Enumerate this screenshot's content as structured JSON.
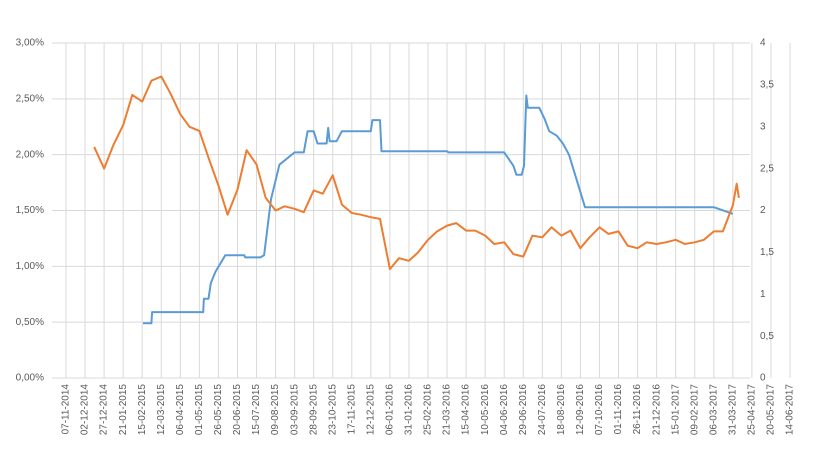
{
  "chart_data": {
    "type": "line",
    "xticks": [
      "07-11-2014",
      "02-12-2014",
      "27-12-2014",
      "21-01-2015",
      "15-02-2015",
      "12-03-2015",
      "06-04-2015",
      "01-05-2015",
      "26-05-2015",
      "20-06-2015",
      "15-07-2015",
      "09-08-2015",
      "03-09-2015",
      "28-09-2015",
      "23-10-2015",
      "17-11-2015",
      "12-12-2015",
      "06-01-2016",
      "31-01-2016",
      "25-02-2016",
      "21-03-2016",
      "15-04-2016",
      "10-05-2016",
      "04-06-2016",
      "29-06-2016",
      "24-07-2016",
      "18-08-2016",
      "12-09-2016",
      "07-10-2016",
      "01-11-2016",
      "26-11-2016",
      "21-12-2016",
      "15-01-2017",
      "09-02-2017",
      "06-03-2017",
      "31-03-2017",
      "25-04-2017",
      "20-05-2017",
      "14-06-2017"
    ],
    "ylim": [
      0,
      3
    ],
    "yticks": [
      {
        "value": 0,
        "label": "0,00%"
      },
      {
        "value": 0.5,
        "label": "0,50%"
      },
      {
        "value": 1,
        "label": "1,00%"
      },
      {
        "value": 1.5,
        "label": "1,50%"
      },
      {
        "value": 2,
        "label": "2,00%"
      },
      {
        "value": 2.5,
        "label": "2,50%"
      },
      {
        "value": 3,
        "label": "3,00%"
      }
    ],
    "y2lim": [
      0,
      4
    ],
    "y2ticks": [
      0,
      {
        "value": 0.5,
        "label": "0,5"
      },
      1,
      {
        "value": 1.5,
        "label": "1,5"
      },
      2,
      {
        "value": 2.5,
        "label": "2,5"
      },
      3,
      {
        "value": 3.5,
        "label": "3,5"
      },
      4
    ],
    "grid": true,
    "series": [
      {
        "color": "#5b9bd5",
        "axis": "y",
        "x": [
          "16-02-2015",
          "27-02-2015",
          "28-02-2015",
          "06-05-2015",
          "07-05-2015",
          "13-05-2015",
          "16-05-2015",
          "22-05-2015",
          "04-06-2015",
          "29-06-2015",
          "30-06-2015",
          "20-07-2015",
          "25-07-2015",
          "03-08-2015",
          "14-08-2015",
          "03-09-2015",
          "15-09-2015",
          "20-09-2015",
          "28-09-2015",
          "03-10-2015",
          "15-10-2015",
          "17-10-2015",
          "19-10-2015",
          "28-10-2015",
          "04-11-2015",
          "12-12-2015",
          "14-12-2015",
          "24-12-2015",
          "26-12-2015",
          "21-03-2016",
          "23-03-2016",
          "04-06-2016",
          "16-06-2016",
          "20-06-2016",
          "27-06-2016",
          "30-06-2016",
          "03-07-2016",
          "05-07-2016",
          "20-07-2016",
          "27-07-2016",
          "02-08-2016",
          "12-08-2016",
          "20-08-2016",
          "28-08-2016",
          "18-09-2016",
          "06-03-2017",
          "31-03-2017"
        ],
        "values": [
          0.49,
          0.49,
          0.59,
          0.59,
          0.71,
          0.71,
          0.85,
          0.95,
          1.1,
          1.1,
          1.08,
          1.08,
          1.1,
          1.6,
          1.91,
          2.02,
          2.02,
          2.21,
          2.21,
          2.1,
          2.1,
          2.24,
          2.12,
          2.12,
          2.21,
          2.21,
          2.31,
          2.31,
          2.03,
          2.03,
          2.02,
          2.02,
          1.9,
          1.82,
          1.82,
          1.9,
          2.53,
          2.42,
          2.42,
          2.32,
          2.21,
          2.17,
          2.1,
          2.0,
          1.53,
          1.53,
          1.47
        ]
      },
      {
        "color": "#ed7d31",
        "axis": "y2",
        "x": [
          "14-12-2014",
          "27-12-2014",
          "08-01-2015",
          "21-01-2015",
          "02-02-2015",
          "15-02-2015",
          "27-02-2015",
          "12-03-2015",
          "24-03-2015",
          "06-04-2015",
          "18-04-2015",
          "01-05-2015",
          "13-05-2015",
          "26-05-2015",
          "07-06-2015",
          "20-06-2015",
          "02-07-2015",
          "15-07-2015",
          "27-07-2015",
          "09-08-2015",
          "21-08-2015",
          "03-09-2015",
          "15-09-2015",
          "28-09-2015",
          "10-10-2015",
          "23-10-2015",
          "04-11-2015",
          "17-11-2015",
          "29-11-2015",
          "12-12-2015",
          "24-12-2015",
          "06-01-2016",
          "18-01-2016",
          "31-01-2016",
          "12-02-2016",
          "25-02-2016",
          "08-03-2016",
          "21-03-2016",
          "02-04-2016",
          "15-04-2016",
          "27-04-2016",
          "10-05-2016",
          "22-05-2016",
          "04-06-2016",
          "16-06-2016",
          "29-06-2016",
          "11-07-2016",
          "24-07-2016",
          "05-08-2016",
          "18-08-2016",
          "30-08-2016",
          "12-09-2016",
          "24-09-2016",
          "07-10-2016",
          "19-10-2016",
          "01-11-2016",
          "13-11-2016",
          "26-11-2016",
          "08-12-2016",
          "21-12-2016",
          "02-01-2017",
          "15-01-2017",
          "27-01-2017",
          "09-02-2017",
          "21-02-2017",
          "06-03-2017",
          "18-03-2017",
          "31-03-2017",
          "05-04-2017",
          "08-04-2017"
        ],
        "values": [
          2.76,
          2.5,
          2.78,
          3.02,
          3.38,
          3.3,
          3.55,
          3.6,
          3.4,
          3.15,
          3.0,
          2.95,
          2.63,
          2.3,
          1.95,
          2.25,
          2.72,
          2.55,
          2.15,
          2.0,
          2.05,
          2.02,
          1.98,
          2.24,
          2.2,
          2.42,
          2.07,
          1.97,
          1.95,
          1.92,
          1.9,
          1.3,
          1.43,
          1.4,
          1.5,
          1.65,
          1.75,
          1.82,
          1.85,
          1.76,
          1.76,
          1.7,
          1.6,
          1.62,
          1.48,
          1.45,
          1.7,
          1.68,
          1.8,
          1.7,
          1.76,
          1.55,
          1.68,
          1.8,
          1.72,
          1.75,
          1.58,
          1.55,
          1.62,
          1.6,
          1.62,
          1.65,
          1.6,
          1.62,
          1.65,
          1.75,
          1.75,
          2.06,
          2.32,
          2.15
        ]
      }
    ]
  }
}
